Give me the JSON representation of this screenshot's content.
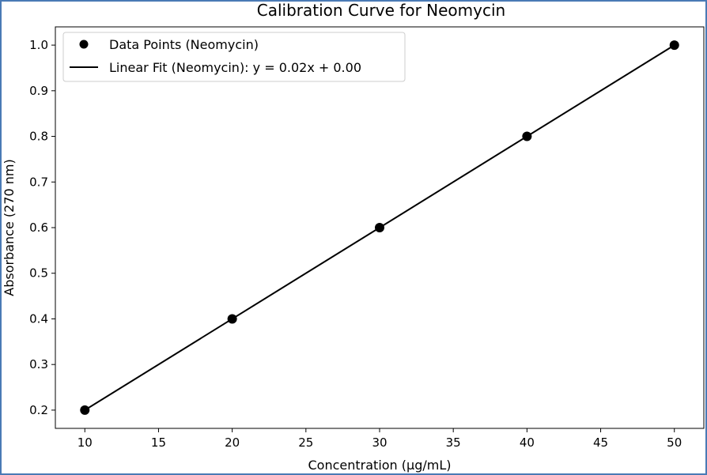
{
  "chart_data": {
    "type": "scatter",
    "title": "Calibration Curve for Neomycin",
    "xlabel": "Concentration (µg/mL)",
    "ylabel": "Absorbance (270 nm)",
    "xlim": [
      8,
      52
    ],
    "ylim": [
      0.16,
      1.04
    ],
    "xticks": [
      10,
      15,
      20,
      25,
      30,
      35,
      40,
      45,
      50
    ],
    "yticks": [
      0.2,
      0.3,
      0.4,
      0.5,
      0.6,
      0.7,
      0.8,
      0.9,
      1.0
    ],
    "xtick_labels": [
      "10",
      "15",
      "20",
      "25",
      "30",
      "35",
      "40",
      "45",
      "50"
    ],
    "ytick_labels": [
      "0.2",
      "0.3",
      "0.4",
      "0.5",
      "0.6",
      "0.7",
      "0.8",
      "0.9",
      "1.0"
    ],
    "grid": false,
    "legend_position": "upper-left",
    "series": [
      {
        "name": "Data Points (Neomycin)",
        "kind": "scatter",
        "color": "#000000",
        "x": [
          10,
          20,
          30,
          40,
          50
        ],
        "y": [
          0.2,
          0.4,
          0.6,
          0.8,
          1.0
        ]
      },
      {
        "name": "Linear Fit (Neomycin): y = 0.02x + 0.00",
        "kind": "line",
        "color": "#000000",
        "x": [
          10,
          50
        ],
        "y": [
          0.2,
          1.0
        ]
      }
    ]
  }
}
